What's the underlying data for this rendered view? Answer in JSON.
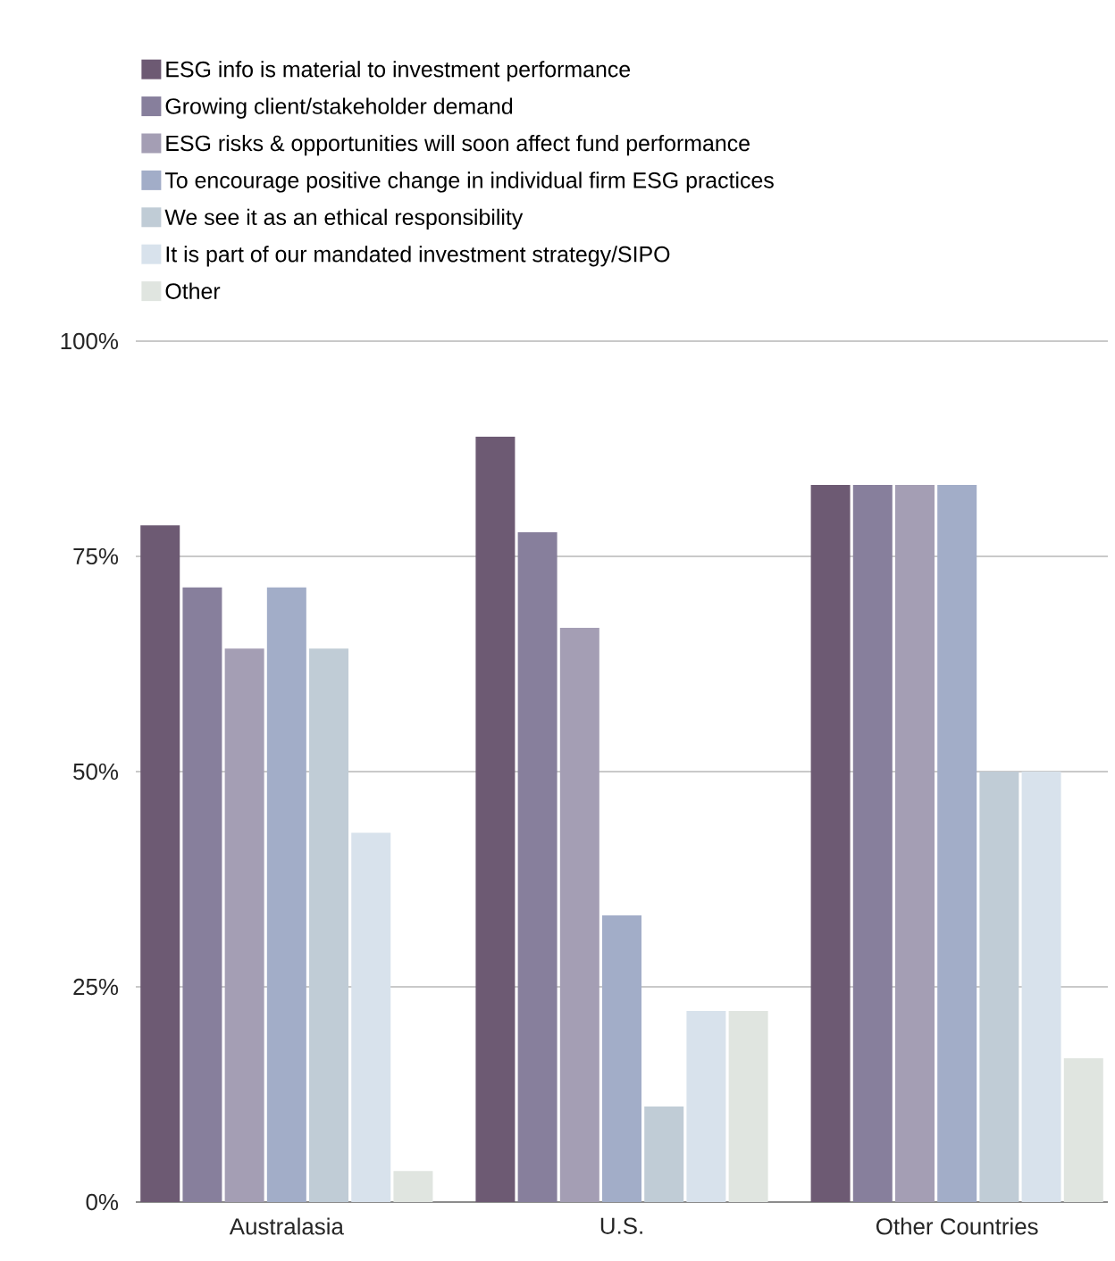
{
  "chart_data": {
    "type": "bar",
    "categories": [
      "Australasia",
      "U.S.",
      "Other Countries"
    ],
    "series": [
      {
        "name": "ESG info is material to investment performance",
        "color": "#6d5a73",
        "values": [
          78.6,
          88.9,
          83.3
        ]
      },
      {
        "name": "Growing client/stakeholder demand",
        "color": "#877f9c",
        "values": [
          71.4,
          77.8,
          83.3
        ]
      },
      {
        "name": "ESG risks & opportunities will soon affect fund performance",
        "color": "#a49eb4",
        "values": [
          64.3,
          66.7,
          83.3
        ]
      },
      {
        "name": "To encourage positive change in individual firm ESG practices",
        "color": "#a2adc8",
        "values": [
          71.4,
          33.3,
          83.3
        ]
      },
      {
        "name": "We see it as an ethical responsibility",
        "color": "#c0ccd6",
        "values": [
          64.3,
          11.1,
          50
        ]
      },
      {
        "name": "It is part of our mandated investment strategy/SIPO",
        "color": "#d8e2ec",
        "values": [
          42.9,
          22.2,
          50
        ]
      },
      {
        "name": "Other",
        "color": "#e0e5e0",
        "values": [
          3.6,
          22.2,
          16.7
        ]
      }
    ],
    "ylim": [
      0,
      100
    ],
    "yticks": [
      {
        "value": 0,
        "label": "0%"
      },
      {
        "value": 25,
        "label": "25%"
      },
      {
        "value": 50,
        "label": "50%"
      },
      {
        "value": 75,
        "label": "75%"
      },
      {
        "value": 100,
        "label": "100%"
      }
    ],
    "grid": "y",
    "legend": "top"
  }
}
